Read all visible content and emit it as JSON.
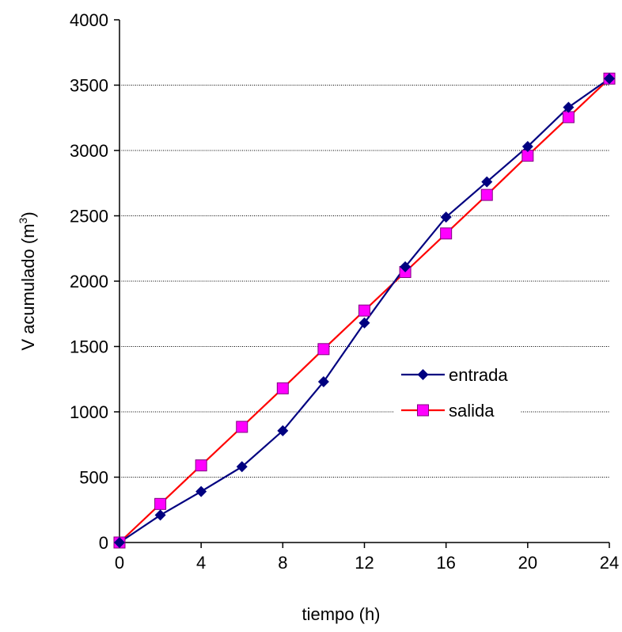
{
  "chart_data": {
    "type": "line",
    "xlabel": "tiempo (h)",
    "ylabel_main": "V acumulado (m",
    "ylabel_sup": "3",
    "ylabel_close": ")",
    "xlim": [
      0,
      24
    ],
    "ylim": [
      0,
      4000
    ],
    "xticks": [
      0,
      4,
      8,
      12,
      16,
      20,
      24
    ],
    "yticks": [
      0,
      500,
      1000,
      1500,
      2000,
      2500,
      3000,
      3500,
      4000
    ],
    "grid": "horizontal dotted",
    "legend_position": "center-right",
    "x": [
      0,
      2,
      4,
      6,
      8,
      10,
      12,
      14,
      16,
      18,
      20,
      22,
      24
    ],
    "series": [
      {
        "name": "entrada",
        "color": "#000080",
        "marker": "diamond",
        "values": [
          0,
          210,
          390,
          580,
          855,
          1230,
          1680,
          2110,
          2490,
          2760,
          3030,
          3330,
          3550
        ]
      },
      {
        "name": "salida",
        "color": "#ff0000",
        "marker_fill": "#ff00ff",
        "marker": "square",
        "values": [
          0,
          295,
          590,
          885,
          1180,
          1480,
          1775,
          2070,
          2365,
          2660,
          2960,
          3255,
          3550
        ]
      }
    ]
  }
}
